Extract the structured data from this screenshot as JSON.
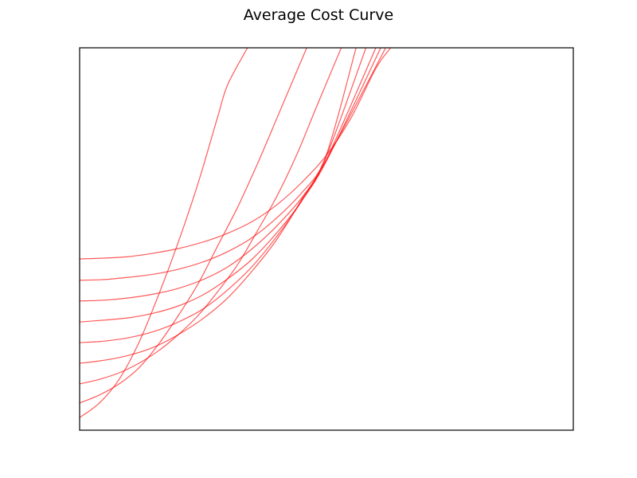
{
  "chart_data": {
    "type": "line",
    "title": "Average Cost Curve",
    "xlabel": "",
    "ylabel": "",
    "xlim": [
      0,
      1
    ],
    "ylim": [
      0,
      1
    ],
    "grid": false,
    "legend": "none",
    "color": "#ff0000",
    "series": [
      {
        "x": [
          0,
          0.04,
          0.08,
          0.12,
          0.16,
          0.2,
          0.24,
          0.28,
          0.3,
          0.34
        ],
        "y": [
          0.033,
          0.071,
          0.133,
          0.229,
          0.354,
          0.492,
          0.646,
          0.821,
          0.904,
          1.0
        ]
      },
      {
        "x": [
          0,
          0.04,
          0.08,
          0.12,
          0.16,
          0.2,
          0.24,
          0.28,
          0.32,
          0.36,
          0.4,
          0.46
        ],
        "y": [
          0.071,
          0.092,
          0.121,
          0.163,
          0.225,
          0.3,
          0.383,
          0.483,
          0.583,
          0.696,
          0.817,
          1.0
        ]
      },
      {
        "x": [
          0,
          0.04,
          0.08,
          0.12,
          0.16,
          0.2,
          0.24,
          0.28,
          0.32,
          0.36,
          0.4,
          0.44,
          0.48,
          0.53
        ],
        "y": [
          0.121,
          0.133,
          0.15,
          0.175,
          0.208,
          0.25,
          0.3,
          0.363,
          0.433,
          0.521,
          0.613,
          0.721,
          0.846,
          1.0
        ]
      },
      {
        "x": [
          0,
          0.05,
          0.1,
          0.15,
          0.2,
          0.25,
          0.3,
          0.35,
          0.4,
          0.45,
          0.5,
          0.56
        ],
        "y": [
          0.175,
          0.183,
          0.196,
          0.217,
          0.25,
          0.292,
          0.346,
          0.417,
          0.5,
          0.604,
          0.721,
          1.0
        ]
      },
      {
        "x": [
          0,
          0.05,
          0.1,
          0.15,
          0.2,
          0.25,
          0.3,
          0.35,
          0.4,
          0.45,
          0.5,
          0.58
        ],
        "y": [
          0.229,
          0.233,
          0.242,
          0.258,
          0.283,
          0.317,
          0.367,
          0.429,
          0.508,
          0.6,
          0.717,
          1.0
        ]
      },
      {
        "x": [
          0,
          0.05,
          0.1,
          0.15,
          0.2,
          0.25,
          0.3,
          0.35,
          0.4,
          0.45,
          0.5,
          0.6
        ],
        "y": [
          0.283,
          0.288,
          0.294,
          0.306,
          0.325,
          0.354,
          0.396,
          0.448,
          0.517,
          0.6,
          0.708,
          1.0
        ]
      },
      {
        "x": [
          0,
          0.05,
          0.1,
          0.15,
          0.2,
          0.25,
          0.3,
          0.35,
          0.4,
          0.45,
          0.5,
          0.61
        ],
        "y": [
          0.338,
          0.34,
          0.346,
          0.356,
          0.371,
          0.394,
          0.427,
          0.475,
          0.535,
          0.608,
          0.704,
          1.0
        ]
      },
      {
        "x": [
          0,
          0.05,
          0.1,
          0.15,
          0.2,
          0.25,
          0.3,
          0.35,
          0.4,
          0.45,
          0.5,
          0.62
        ],
        "y": [
          0.392,
          0.394,
          0.4,
          0.408,
          0.421,
          0.44,
          0.467,
          0.504,
          0.556,
          0.621,
          0.708,
          1.0
        ]
      },
      {
        "x": [
          0,
          0.05,
          0.1,
          0.15,
          0.2,
          0.25,
          0.3,
          0.35,
          0.4,
          0.45,
          0.5,
          0.55,
          0.6,
          0.63
        ],
        "y": [
          0.448,
          0.45,
          0.454,
          0.463,
          0.475,
          0.492,
          0.515,
          0.546,
          0.59,
          0.648,
          0.719,
          0.817,
          0.946,
          1.0
        ]
      }
    ]
  }
}
